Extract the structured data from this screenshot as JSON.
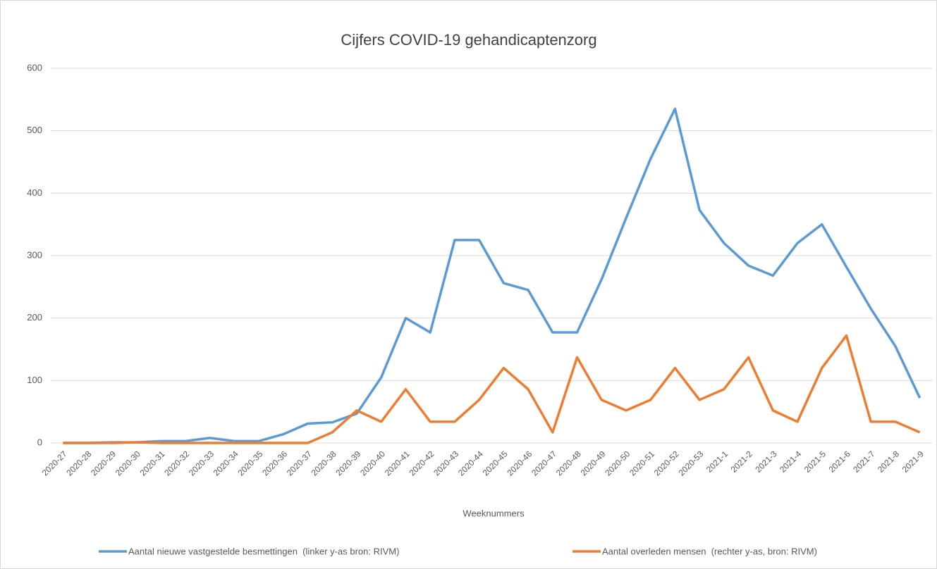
{
  "chart_data": {
    "type": "line",
    "title": "Cijfers COVID-19 gehandicaptenzorg",
    "x_label": "Weeknummers",
    "categories": [
      "2020-27",
      "2020-28",
      "2020-29",
      "2020-30",
      "2020-31",
      "2020-32",
      "2020-33",
      "2020-34",
      "2020-35",
      "2020-36",
      "2020-37",
      "2020-38",
      "2020-39",
      "2020-40",
      "2020-41",
      "2020-42",
      "2020-43",
      "2020-44",
      "2020-45",
      "2020-46",
      "2020-47",
      "2020-48",
      "2020-49",
      "2020-50",
      "2020-51",
      "2020-52",
      "2020-53",
      "2021-1",
      "2021-2",
      "2021-3",
      "2021-4",
      "2021-5",
      "2021-6",
      "2021-7",
      "2021-8",
      "2021-9"
    ],
    "series": [
      {
        "name": "Aantal nieuwe vastgestelde besmettingen  (linker y-as bron: RIVM)",
        "color": "#5b9bd5",
        "values": [
          0,
          0,
          1,
          1,
          3,
          3,
          8,
          3,
          3,
          14,
          31,
          33,
          47,
          105,
          200,
          177,
          325,
          325,
          256,
          245,
          177,
          177,
          262,
          360,
          455,
          535,
          373,
          320,
          284,
          268,
          320,
          350,
          282,
          215,
          155,
          72
        ]
      },
      {
        "name": "Aantal overleden mensen  (rechter y-as, bron: RIVM)",
        "color": "#ed7d31",
        "values": [
          0,
          0,
          0,
          1,
          0,
          0,
          0,
          0,
          0,
          0,
          0,
          17,
          52,
          34,
          86,
          34,
          34,
          69,
          120,
          86,
          17,
          137,
          69,
          52,
          69,
          120,
          69,
          86,
          137,
          52,
          34,
          120,
          172,
          34,
          34,
          17
        ]
      }
    ],
    "ylim": [
      0,
      600
    ],
    "yticks": [
      0,
      100,
      200,
      300,
      400,
      500,
      600
    ],
    "grid": true
  }
}
